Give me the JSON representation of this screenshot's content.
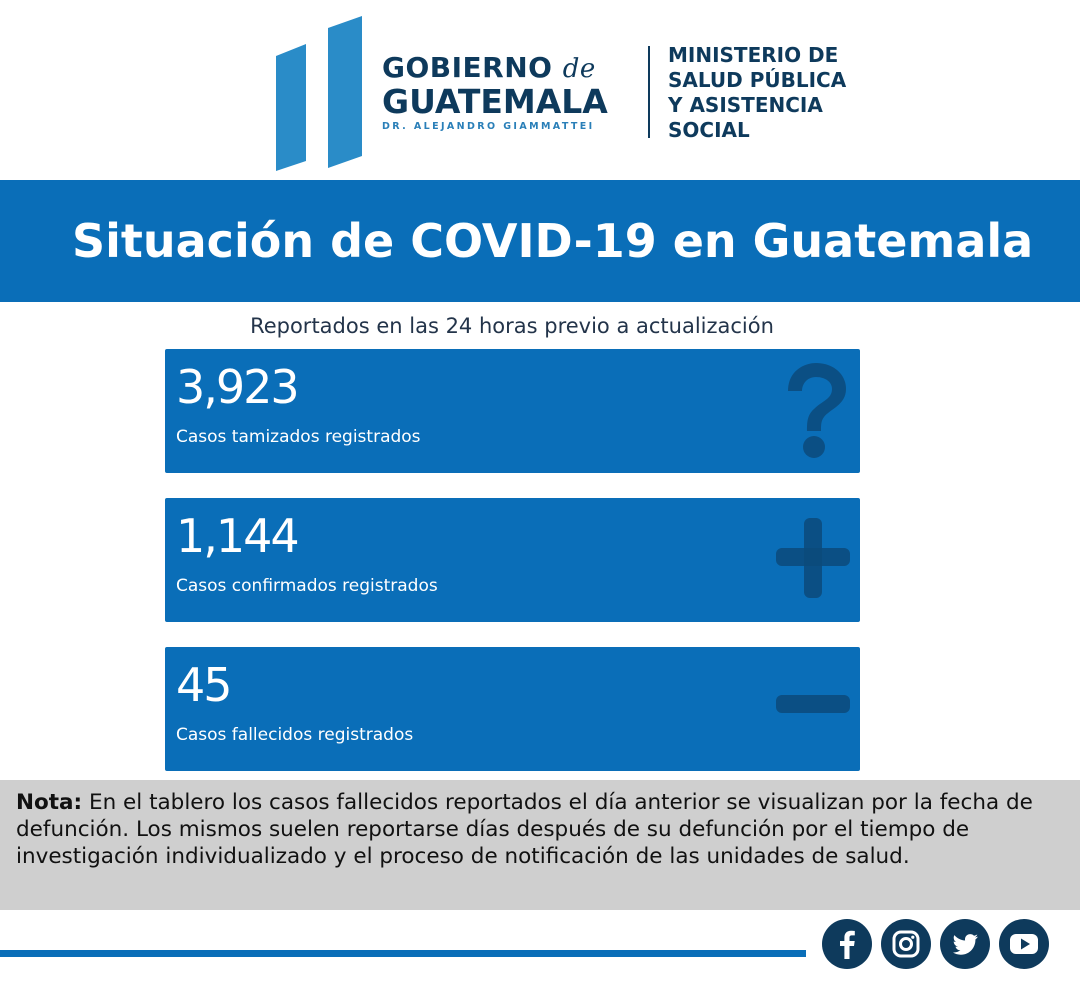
{
  "header": {
    "gov_name_line1": "GOBIERNO",
    "gov_name_de": "de",
    "gov_name_line2": "GUATEMALA",
    "gov_president": "DR. ALEJANDRO GIAMMATTEI",
    "ministry_lines": [
      "MINISTERIO DE",
      "SALUD PÚBLICA",
      "Y ASISTENCIA",
      "SOCIAL"
    ]
  },
  "title": "Situación de COVID-19 en Guatemala",
  "subtitle": "Reportados en las 24 horas previo a actualización",
  "cards": [
    {
      "value": "3,923",
      "label": "Casos tamizados registrados",
      "icon": "question-icon"
    },
    {
      "value": "1,144",
      "label": "Casos confirmados registrados",
      "icon": "plus-icon"
    },
    {
      "value": "45",
      "label": "Casos fallecidos registrados",
      "icon": "minus-icon"
    }
  ],
  "note": {
    "label": "Nota:",
    "text": " En el tablero los casos fallecidos reportados el día anterior se visualizan por la fecha de defunción. Los mismos suelen reportarse días después de su defunción por el tiempo de investigación individualizado y el proceso de notificación de las unidades de salud."
  },
  "social": [
    "facebook-icon",
    "instagram-icon",
    "twitter-icon",
    "youtube-icon"
  ],
  "colors": {
    "primary_blue": "#0a6eb8",
    "navy": "#0e3a5c",
    "logo_blue": "#2a8cc8",
    "note_bg": "#cfcfcf"
  }
}
